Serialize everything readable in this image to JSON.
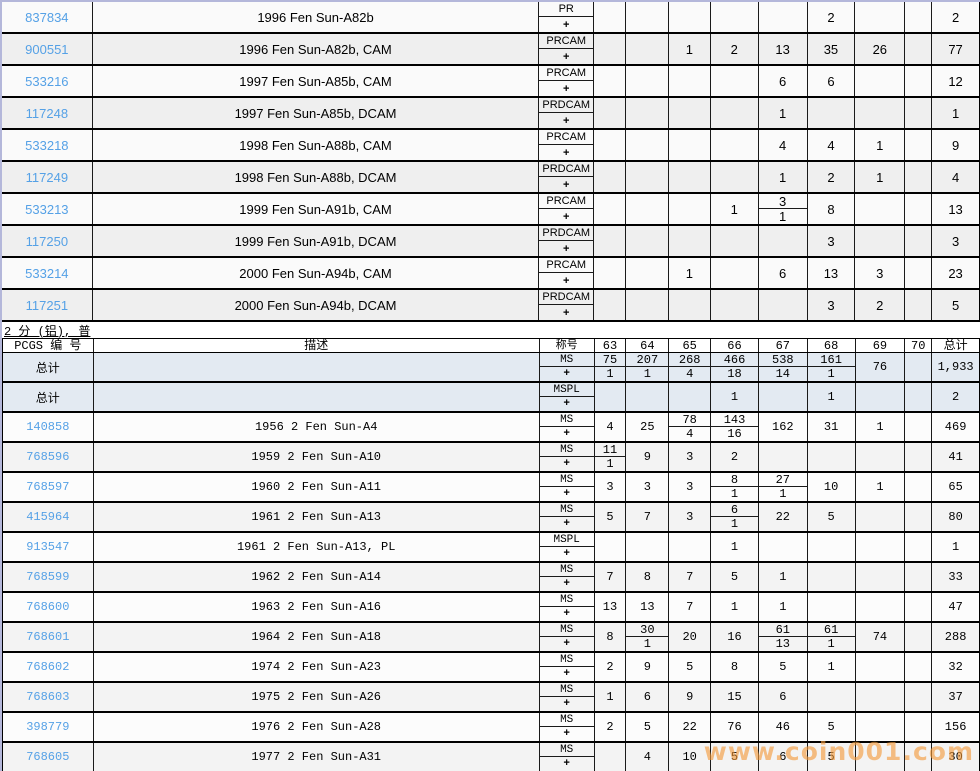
{
  "section_label": "2 分 (铝), 普",
  "watermark": "www.coin001.com",
  "colors": {
    "link_blue": "#55a1e6",
    "upper_alt_row": "#efefef",
    "lower_alt_row": "#f3f3f3",
    "totals_row_bg": "#e3eaf2",
    "outer_border": "#b4b7da",
    "watermark_orange": "#f39a3a"
  },
  "columns": {
    "pcgs": "PCGS 编 号",
    "desc": "描述",
    "desig": "称号",
    "grades": [
      "63",
      "64",
      "65",
      "66",
      "67",
      "68",
      "69",
      "70"
    ],
    "total": "总计"
  },
  "plus_label": "+",
  "upper_table": {
    "rows": [
      {
        "pcgs": "837834",
        "desc": "1996 Fen Sun-A82b",
        "desig": "PR",
        "cells": {
          "68": "2",
          "total": "2"
        }
      },
      {
        "pcgs": "900551",
        "desc": "1996 Fen Sun-A82b, CAM",
        "desig": "PRCAM",
        "cells": {
          "65": "1",
          "66": "2",
          "67": "13",
          "68": "35",
          "69": "26",
          "total": "77"
        }
      },
      {
        "pcgs": "533216",
        "desc": "1997 Fen Sun-A85b, CAM",
        "desig": "PRCAM",
        "cells": {
          "67": "6",
          "68": "6",
          "total": "12"
        }
      },
      {
        "pcgs": "117248",
        "desc": "1997 Fen Sun-A85b, DCAM",
        "desig": "PRDCAM",
        "cells": {
          "67": "1",
          "total": "1"
        }
      },
      {
        "pcgs": "533218",
        "desc": "1998 Fen Sun-A88b, CAM",
        "desig": "PRCAM",
        "cells": {
          "67": "4",
          "68": "4",
          "69": "1",
          "total": "9"
        }
      },
      {
        "pcgs": "117249",
        "desc": "1998 Fen Sun-A88b, DCAM",
        "desig": "PRDCAM",
        "cells": {
          "67": "1",
          "68": "2",
          "69": "1",
          "total": "4"
        }
      },
      {
        "pcgs": "533213",
        "desc": "1999 Fen Sun-A91b, CAM",
        "desig": "PRCAM",
        "cells": {
          "66": "1",
          "67": [
            "3",
            "1"
          ],
          "68": "8",
          "total": "13"
        }
      },
      {
        "pcgs": "117250",
        "desc": "1999 Fen Sun-A91b, DCAM",
        "desig": "PRDCAM",
        "cells": {
          "68": "3",
          "total": "3"
        }
      },
      {
        "pcgs": "533214",
        "desc": "2000 Fen Sun-A94b, CAM",
        "desig": "PRCAM",
        "cells": {
          "65": "1",
          "67": "6",
          "68": "13",
          "69": "3",
          "total": "23"
        }
      },
      {
        "pcgs": "117251",
        "desc": "2000 Fen Sun-A94b, DCAM",
        "desig": "PRDCAM",
        "cells": {
          "68": "3",
          "69": "2",
          "total": "5"
        }
      }
    ]
  },
  "lower_table": {
    "total_rows": [
      {
        "label": "总计",
        "desig": "MS",
        "cells": {
          "63": [
            "75",
            "1"
          ],
          "64": [
            "207",
            "1"
          ],
          "65": [
            "268",
            "4"
          ],
          "66": [
            "466",
            "18"
          ],
          "67": [
            "538",
            "14"
          ],
          "68": [
            "161",
            "1"
          ],
          "69": "76",
          "total": "1,933"
        }
      },
      {
        "label": "总计",
        "desig": "MSPL",
        "cells": {
          "66": "1",
          "68": "1",
          "total": "2"
        }
      }
    ],
    "rows": [
      {
        "pcgs": "140858",
        "desc": "1956 2 Fen Sun-A4",
        "desig": "MS",
        "cells": {
          "63": "4",
          "64": "25",
          "65": [
            "78",
            "4"
          ],
          "66": [
            "143",
            "16"
          ],
          "67": "162",
          "68": "31",
          "69": "1",
          "total": "469"
        }
      },
      {
        "pcgs": "768596",
        "desc": "1959 2 Fen Sun-A10",
        "desig": "MS",
        "cells": {
          "63": [
            "11",
            "1"
          ],
          "64": "9",
          "65": "3",
          "66": "2",
          "total": "41"
        }
      },
      {
        "pcgs": "768597",
        "desc": "1960 2 Fen Sun-A11",
        "desig": "MS",
        "cells": {
          "63": "3",
          "64": "3",
          "65": "3",
          "66": [
            "8",
            "1"
          ],
          "67": [
            "27",
            "1"
          ],
          "68": "10",
          "69": "1",
          "total": "65"
        }
      },
      {
        "pcgs": "415964",
        "desc": "1961 2 Fen Sun-A13",
        "desig": "MS",
        "cells": {
          "63": "5",
          "64": "7",
          "65": "3",
          "66": [
            "6",
            "1"
          ],
          "67": "22",
          "68": "5",
          "total": "80"
        }
      },
      {
        "pcgs": "913547",
        "desc": "1961 2 Fen Sun-A13, PL",
        "desig": "MSPL",
        "cells": {
          "66": "1",
          "total": "1"
        }
      },
      {
        "pcgs": "768599",
        "desc": "1962 2 Fen Sun-A14",
        "desig": "MS",
        "cells": {
          "63": "7",
          "64": "8",
          "65": "7",
          "66": "5",
          "67": "1",
          "total": "33"
        }
      },
      {
        "pcgs": "768600",
        "desc": "1963 2 Fen Sun-A16",
        "desig": "MS",
        "cells": {
          "63": "13",
          "64": "13",
          "65": "7",
          "66": "1",
          "67": "1",
          "total": "47"
        }
      },
      {
        "pcgs": "768601",
        "desc": "1964 2 Fen Sun-A18",
        "desig": "MS",
        "cells": {
          "63": "8",
          "64": [
            "30",
            "1"
          ],
          "65": "20",
          "66": "16",
          "67": [
            "61",
            "13"
          ],
          "68": [
            "61",
            "1"
          ],
          "69": "74",
          "total": "288"
        }
      },
      {
        "pcgs": "768602",
        "desc": "1974 2 Fen Sun-A23",
        "desig": "MS",
        "cells": {
          "63": "2",
          "64": "9",
          "65": "5",
          "66": "8",
          "67": "5",
          "68": "1",
          "total": "32"
        }
      },
      {
        "pcgs": "768603",
        "desc": "1975 2 Fen Sun-A26",
        "desig": "MS",
        "cells": {
          "63": "1",
          "64": "6",
          "65": "9",
          "66": "15",
          "67": "6",
          "total": "37"
        }
      },
      {
        "pcgs": "398779",
        "desc": "1976 2 Fen Sun-A28",
        "desig": "MS",
        "cells": {
          "63": "2",
          "64": "5",
          "65": "22",
          "66": "76",
          "67": "46",
          "68": "5",
          "total": "156"
        }
      },
      {
        "pcgs": "768605",
        "desc": "1977 2 Fen Sun-A31",
        "desig": "MS",
        "cells": {
          "64": "4",
          "65": "10",
          "66": "5",
          "67": "6",
          "68": "5",
          "total": "30"
        }
      }
    ]
  }
}
